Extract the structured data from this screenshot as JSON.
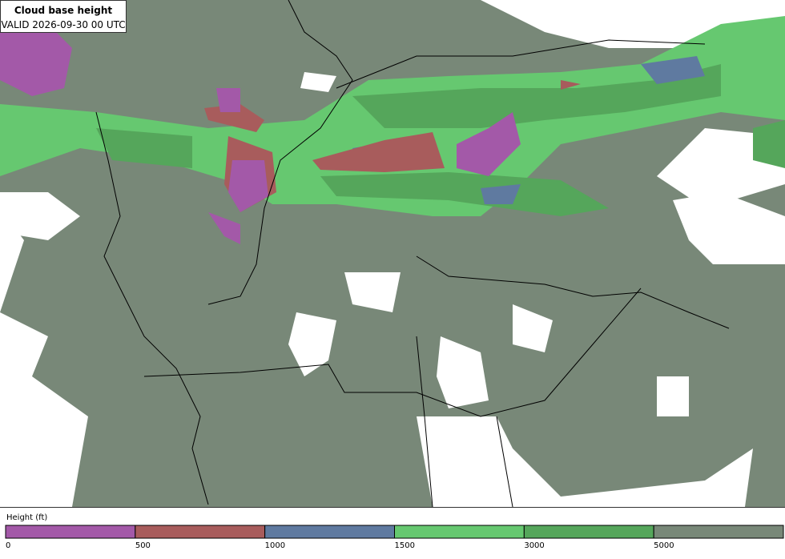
{
  "header": {
    "title": "Cloud base height",
    "valid": "VALID 2026-09-30 00 UTC"
  },
  "legend": {
    "label": "Height (ft)",
    "ticks": [
      0,
      500,
      1000,
      1500,
      3000,
      5000
    ],
    "colors": [
      "#a359a8",
      "#a85c5c",
      "#5f7aa0",
      "#66c870",
      "#55a65b",
      "#788878"
    ]
  }
}
